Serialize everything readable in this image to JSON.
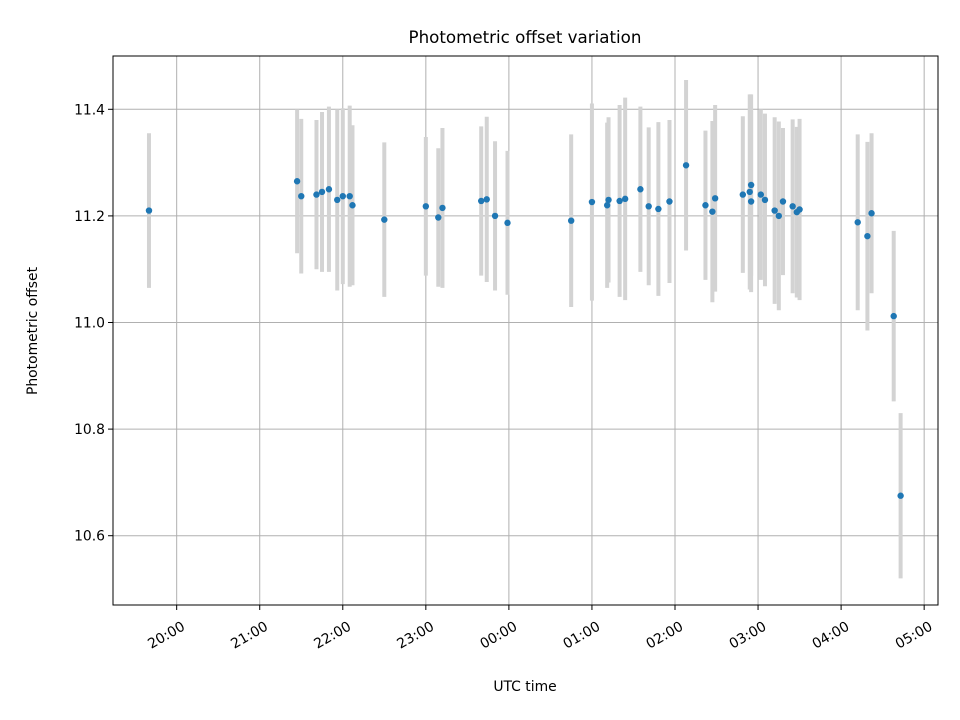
{
  "chart_data": {
    "type": "scatter",
    "title": "Photometric offset variation",
    "xlabel": "UTC time",
    "ylabel": "Photometric offset",
    "x_ticks": [
      "20:00",
      "21:00",
      "22:00",
      "23:00",
      "00:00",
      "01:00",
      "02:00",
      "03:00",
      "04:00",
      "05:00"
    ],
    "y_ticks": [
      10.6,
      10.8,
      11.0,
      11.2,
      11.4
    ],
    "xlim": [
      "19:14",
      "05:10"
    ],
    "ylim": [
      10.47,
      11.5
    ],
    "grid": true,
    "legend": "none",
    "point_color": "#1f77b4",
    "errorbar_color": "#d3d3d3",
    "series": [
      {
        "x": [
          "19:40",
          "21:27",
          "21:30",
          "21:41",
          "21:45",
          "21:50",
          "21:56",
          "22:00",
          "22:05",
          "22:07",
          "22:30",
          "23:00",
          "23:09",
          "23:12",
          "23:40",
          "23:44",
          "23:50",
          "23:59",
          "00:45",
          "01:00",
          "01:11",
          "01:12",
          "01:20",
          "01:24",
          "01:35",
          "01:41",
          "01:48",
          "01:56",
          "02:08",
          "02:22",
          "02:27",
          "02:29",
          "02:49",
          "02:54",
          "02:55",
          "02:55",
          "03:02",
          "03:05",
          "03:12",
          "03:15",
          "03:18",
          "03:25",
          "03:28",
          "03:30",
          "04:12",
          "04:19",
          "04:22",
          "04:38",
          "04:43"
        ],
        "y": [
          11.21,
          11.265,
          11.237,
          11.24,
          11.245,
          11.25,
          11.23,
          11.237,
          11.237,
          11.22,
          11.193,
          11.218,
          11.197,
          11.215,
          11.228,
          11.231,
          11.2,
          11.187,
          11.191,
          11.226,
          11.22,
          11.23,
          11.228,
          11.232,
          11.25,
          11.218,
          11.213,
          11.227,
          11.295,
          11.22,
          11.208,
          11.233,
          11.24,
          11.245,
          11.258,
          11.227,
          11.24,
          11.23,
          11.21,
          11.2,
          11.227,
          11.218,
          11.207,
          11.212,
          11.188,
          11.162,
          11.205,
          11.012,
          10.675
        ],
        "yerr": [
          0.145,
          0.135,
          0.145,
          0.14,
          0.15,
          0.155,
          0.17,
          0.165,
          0.17,
          0.15,
          0.145,
          0.13,
          0.13,
          0.15,
          0.14,
          0.155,
          0.14,
          0.135,
          0.162,
          0.185,
          0.155,
          0.155,
          0.18,
          0.19,
          0.155,
          0.148,
          0.163,
          0.153,
          0.16,
          0.14,
          0.17,
          0.175,
          0.147,
          0.183,
          0.17,
          0.17,
          0.16,
          0.162,
          0.175,
          0.177,
          0.138,
          0.163,
          0.16,
          0.17,
          0.165,
          0.177,
          0.15,
          0.16,
          0.155
        ]
      }
    ]
  }
}
